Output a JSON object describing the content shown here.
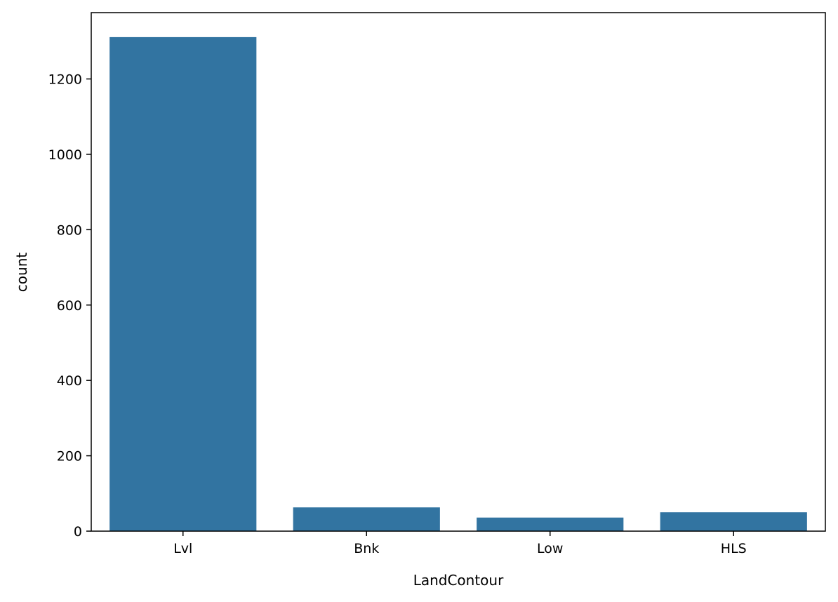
{
  "chart_data": {
    "type": "bar",
    "categories": [
      "Lvl",
      "Bnk",
      "Low",
      "HLS"
    ],
    "values": [
      1311,
      63,
      36,
      50
    ],
    "xlabel": "LandContour",
    "ylabel": "count",
    "ylim": [
      0,
      1376
    ],
    "yticks": [
      0,
      200,
      400,
      600,
      800,
      1000,
      1200
    ],
    "bar_color": "#3274a1",
    "grid": false
  }
}
